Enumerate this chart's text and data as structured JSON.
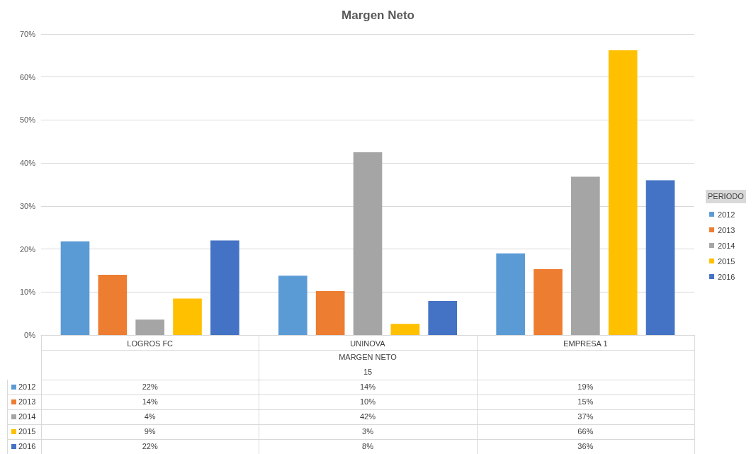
{
  "chart_data": {
    "type": "bar",
    "title": "Margen Neto",
    "legend_title": "PERIODO",
    "categories": [
      "LOGROS FC",
      "UNINOVA",
      "EMPRESA 1"
    ],
    "series": [
      {
        "name": "2012",
        "color": "#5b9bd5",
        "values": [
          21.8,
          13.8,
          19
        ],
        "value_labels": [
          "22%",
          "14%",
          "19%"
        ]
      },
      {
        "name": "2013",
        "color": "#ed7d31",
        "values": [
          14,
          10.2,
          15.3
        ],
        "value_labels": [
          "14%",
          "10%",
          "15%"
        ]
      },
      {
        "name": "2014",
        "color": "#a5a5a5",
        "values": [
          3.6,
          42.5,
          36.8
        ],
        "value_labels": [
          "4%",
          "42%",
          "37%"
        ]
      },
      {
        "name": "2015",
        "color": "#ffc000",
        "values": [
          8.5,
          2.6,
          66.2
        ],
        "value_labels": [
          "9%",
          "3%",
          "66%"
        ]
      },
      {
        "name": "2016",
        "color": "#4472c4",
        "values": [
          22,
          7.9,
          36
        ],
        "value_labels": [
          "22%",
          "8%",
          "36%"
        ]
      }
    ],
    "ylim": [
      0,
      70
    ],
    "yticks": [
      {
        "value": 0,
        "label": "0%"
      },
      {
        "value": 10,
        "label": "10%"
      },
      {
        "value": 20,
        "label": "20%"
      },
      {
        "value": 30,
        "label": "30%"
      },
      {
        "value": 40,
        "label": "40%"
      },
      {
        "value": 50,
        "label": "50%"
      },
      {
        "value": 60,
        "label": "60%"
      },
      {
        "value": 70,
        "label": "70%"
      }
    ],
    "grid": "y",
    "legend": "right",
    "annotations": [
      "MARGEN NETO",
      "15"
    ]
  }
}
